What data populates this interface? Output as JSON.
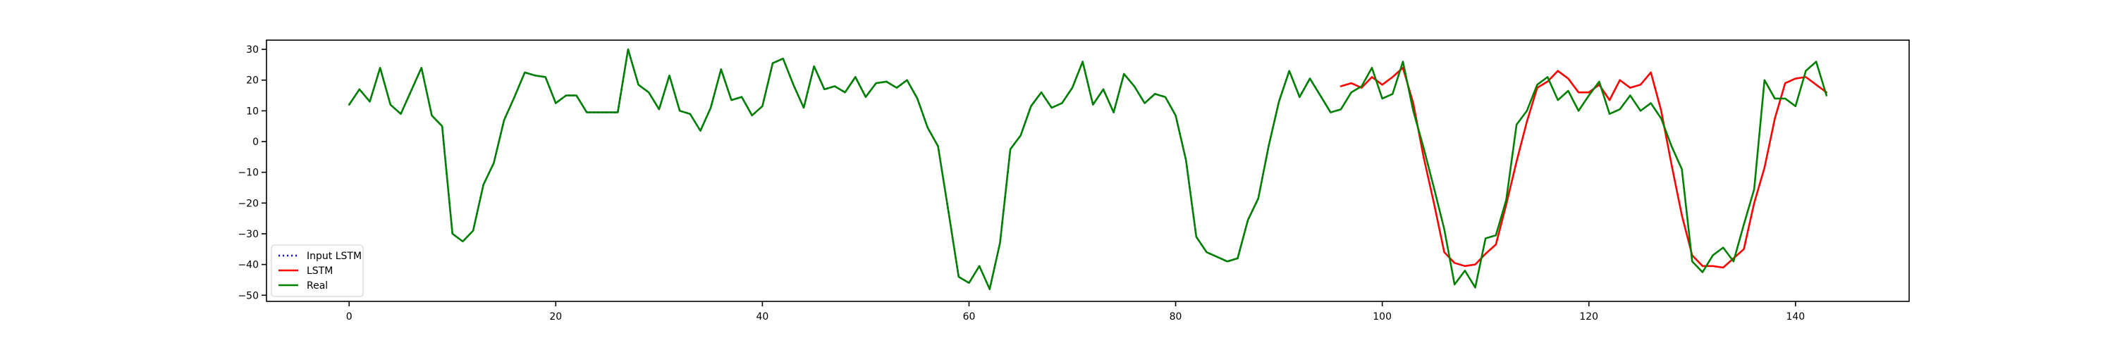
{
  "chart_data": {
    "type": "line",
    "title": "",
    "xlabel": "",
    "ylabel": "",
    "xlim": [
      -8,
      151
    ],
    "ylim": [
      -52,
      33
    ],
    "xticks": [
      0,
      20,
      40,
      60,
      80,
      100,
      120,
      140
    ],
    "yticks": [
      -50,
      -40,
      -30,
      -20,
      -10,
      0,
      10,
      20,
      30
    ],
    "grid": false,
    "legend_position": "lower-left",
    "series": [
      {
        "name": "Input LSTM",
        "color": "#0000ff",
        "linestyle": "dotted",
        "x": [
          0,
          1,
          2,
          3,
          4,
          5,
          6,
          7,
          8,
          9,
          10,
          11,
          12,
          13,
          14,
          15,
          16,
          17,
          18,
          19,
          20,
          21,
          22,
          23,
          24,
          25,
          26,
          27,
          28,
          29,
          30,
          31,
          32,
          33,
          34,
          35,
          36,
          37,
          38,
          39,
          40,
          41,
          42,
          43,
          44,
          45,
          46,
          47,
          48,
          49,
          50,
          51,
          52,
          53,
          54,
          55,
          56,
          57,
          58,
          59,
          60,
          61,
          62,
          63,
          64,
          65,
          66,
          67,
          68,
          69,
          70,
          71,
          72,
          73,
          74,
          75,
          76,
          77,
          78,
          79,
          80,
          81,
          82,
          83,
          84,
          85,
          86,
          87,
          88,
          89,
          90,
          91,
          92,
          93,
          94,
          95
        ],
        "values": [
          12,
          17,
          13,
          24,
          12,
          9,
          16.5,
          24,
          8.5,
          5,
          -30,
          -32.5,
          -29,
          -14,
          -7,
          7,
          14.5,
          22.5,
          21.5,
          21,
          12.5,
          15,
          15,
          9.5,
          9.5,
          9.5,
          9.5,
          30,
          18.5,
          16,
          10.5,
          21.5,
          10,
          9,
          3.5,
          11,
          23.5,
          13.5,
          14.5,
          8.5,
          11.5,
          25.5,
          27,
          18.5,
          11,
          24.5,
          17,
          18,
          16,
          21,
          14.5,
          19,
          19.5,
          17.5,
          20,
          14,
          4.5,
          -1.5,
          -22.5,
          -44,
          -46,
          -40.5,
          -48,
          -33,
          -2.5,
          2,
          11.5,
          16,
          11,
          12.5,
          17.5,
          26,
          12,
          17,
          9.5,
          22,
          18,
          12.5,
          15.5,
          14.5,
          8.5,
          -6,
          -31,
          -36,
          -37.5,
          -39,
          -38,
          -25.5,
          -18.5,
          -1.5,
          13,
          23,
          14.5,
          20.5,
          15,
          9.5
        ]
      },
      {
        "name": "LSTM",
        "color": "#ff0000",
        "linestyle": "solid",
        "x": [
          96,
          97,
          98,
          99,
          100,
          101,
          102,
          103,
          104,
          105,
          106,
          107,
          108,
          109,
          110,
          111,
          112,
          113,
          114,
          115,
          116,
          117,
          118,
          119,
          120,
          121,
          122,
          123,
          124,
          125,
          126,
          127,
          128,
          129,
          130,
          131,
          132,
          133,
          134,
          135,
          136,
          137,
          138,
          139,
          140,
          141,
          142,
          143
        ],
        "values": [
          18,
          19,
          17.5,
          21,
          18.5,
          21,
          24,
          12.5,
          -5,
          -20,
          -36,
          -39.5,
          -40.5,
          -40,
          -36.5,
          -33.5,
          -20.5,
          -6.5,
          6.5,
          17.5,
          19.5,
          23,
          20.5,
          16,
          16,
          18.5,
          13.5,
          20,
          17.5,
          18.5,
          22.5,
          10,
          -7.5,
          -24,
          -37,
          -40.5,
          -40.5,
          -41,
          -38,
          -35,
          -20,
          -8.5,
          7.5,
          19,
          20.5,
          21,
          18.5,
          16
        ]
      },
      {
        "name": "Real",
        "color": "#008000",
        "linestyle": "solid",
        "x": [
          0,
          1,
          2,
          3,
          4,
          5,
          6,
          7,
          8,
          9,
          10,
          11,
          12,
          13,
          14,
          15,
          16,
          17,
          18,
          19,
          20,
          21,
          22,
          23,
          24,
          25,
          26,
          27,
          28,
          29,
          30,
          31,
          32,
          33,
          34,
          35,
          36,
          37,
          38,
          39,
          40,
          41,
          42,
          43,
          44,
          45,
          46,
          47,
          48,
          49,
          50,
          51,
          52,
          53,
          54,
          55,
          56,
          57,
          58,
          59,
          60,
          61,
          62,
          63,
          64,
          65,
          66,
          67,
          68,
          69,
          70,
          71,
          72,
          73,
          74,
          75,
          76,
          77,
          78,
          79,
          80,
          81,
          82,
          83,
          84,
          85,
          86,
          87,
          88,
          89,
          90,
          91,
          92,
          93,
          94,
          95,
          96,
          97,
          98,
          99,
          100,
          101,
          102,
          103,
          104,
          105,
          106,
          107,
          108,
          109,
          110,
          111,
          112,
          113,
          114,
          115,
          116,
          117,
          118,
          119,
          120,
          121,
          122,
          123,
          124,
          125,
          126,
          127,
          128,
          129,
          130,
          131,
          132,
          133,
          134,
          135,
          136,
          137,
          138,
          139,
          140,
          141,
          142,
          143
        ],
        "values": [
          12,
          17,
          13,
          24,
          12,
          9,
          16.5,
          24,
          8.5,
          5,
          -30,
          -32.5,
          -29,
          -14,
          -7,
          7,
          14.5,
          22.5,
          21.5,
          21,
          12.5,
          15,
          15,
          9.5,
          9.5,
          9.5,
          9.5,
          30,
          18.5,
          16,
          10.5,
          21.5,
          10,
          9,
          3.5,
          11,
          23.5,
          13.5,
          14.5,
          8.5,
          11.5,
          25.5,
          27,
          18.5,
          11,
          24.5,
          17,
          18,
          16,
          21,
          14.5,
          19,
          19.5,
          17.5,
          20,
          14,
          4.5,
          -1.5,
          -22.5,
          -44,
          -46,
          -40.5,
          -48,
          -33,
          -2.5,
          2,
          11.5,
          16,
          11,
          12.5,
          17.5,
          26,
          12,
          17,
          9.5,
          22,
          18,
          12.5,
          15.5,
          14.5,
          8.5,
          -6,
          -31,
          -36,
          -37.5,
          -39,
          -38,
          -25.5,
          -18.5,
          -1.5,
          13,
          23,
          14.5,
          20.5,
          15,
          9.5,
          10.5,
          16,
          18,
          24,
          14,
          15.5,
          26,
          10,
          -2,
          -15,
          -28.5,
          -46.5,
          -42,
          -47.5,
          -31.5,
          -30.5,
          -19,
          5.5,
          10,
          18.5,
          21,
          13.5,
          16.5,
          10,
          15,
          19.5,
          9,
          10.5,
          15,
          10,
          12.5,
          7.5,
          -1.5,
          -9,
          -39,
          -42.5,
          -37,
          -34.5,
          -39,
          -27,
          -15.5,
          20,
          14,
          14,
          11.5,
          23,
          26,
          15
        ]
      }
    ]
  }
}
